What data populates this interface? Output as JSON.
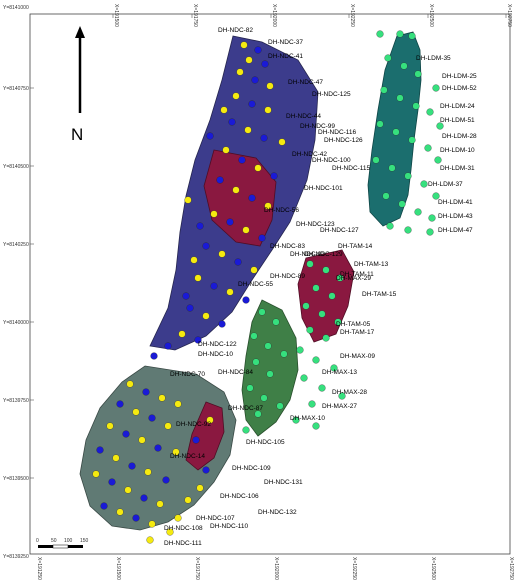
{
  "north": {
    "label": "N"
  },
  "grid": {
    "x_labels": [
      "X=191500",
      "X=191750",
      "X=192000",
      "X=192250",
      "X=192500",
      "X=192750"
    ],
    "x_labels_bottom": [
      "X=191250",
      "X=191500",
      "X=191750",
      "X=192000",
      "X=192250",
      "X=192500",
      "X=192750"
    ],
    "y_labels": [
      "Y=8141000",
      "Y=8140750",
      "Y=8140500",
      "Y=8140250",
      "Y=8140000",
      "Y=8139750",
      "Y=8139500",
      "Y=8139250"
    ]
  },
  "scale_bar": {
    "ticks": [
      "0",
      "50",
      "100",
      "150"
    ]
  },
  "colors": {
    "purple_body": "#3c3c8c",
    "teal_body": "#1b6e6e",
    "grey_body": "#607a74",
    "green_body": "#3f7f47",
    "red_body": "#8a1840",
    "hole_yellow": "#f5ea10",
    "hole_blue": "#1a1ad6",
    "hole_green": "#36e07e"
  },
  "drillholes": [
    {
      "label": "DH-NDC-82"
    },
    {
      "label": "DH-NDC-37"
    },
    {
      "label": "DH-NDC-41"
    },
    {
      "label": "DH-NDC-47"
    },
    {
      "label": "DH-NDC-125"
    },
    {
      "label": "DH-NDC-44"
    },
    {
      "label": "DH-NDC-99"
    },
    {
      "label": "DH-NDC-116"
    },
    {
      "label": "DH-NDC-126"
    },
    {
      "label": "DH-NDC-42"
    },
    {
      "label": "DH-NDC-100"
    },
    {
      "label": "DH-NDC-115"
    },
    {
      "label": "DH-NDC-101"
    },
    {
      "label": "DH-NDC-56"
    },
    {
      "label": "DH-NDC-123"
    },
    {
      "label": "DH-NDC-127"
    },
    {
      "label": "DH-NDC-83"
    },
    {
      "label": "DH-NDC-129"
    },
    {
      "label": "DH-NDC-89"
    },
    {
      "label": "DH-NDC-93"
    },
    {
      "label": "DH-NDC-55"
    },
    {
      "label": "DH-NDC-122"
    },
    {
      "label": "DH-NDC-10"
    },
    {
      "label": "DH-NDC-84"
    },
    {
      "label": "DH-NDC-70"
    },
    {
      "label": "DH-NDC-92"
    },
    {
      "label": "DH-NDC-14"
    },
    {
      "label": "DH-NDC-87"
    },
    {
      "label": "DH-NDC-105"
    },
    {
      "label": "DH-NDC-109"
    },
    {
      "label": "DH-NDC-131"
    },
    {
      "label": "DH-NDC-106"
    },
    {
      "label": "DH-NDC-132"
    },
    {
      "label": "DH-NDC-107"
    },
    {
      "label": "DH-NDC-110"
    },
    {
      "label": "DH-NDC-108"
    },
    {
      "label": "DH-NDC-111"
    },
    {
      "label": "DH-LDM-35"
    },
    {
      "label": "DH-LDM-25"
    },
    {
      "label": "DH-LDM-52"
    },
    {
      "label": "DH-LDM-24"
    },
    {
      "label": "DH-LDM-51"
    },
    {
      "label": "DH-LDM-28"
    },
    {
      "label": "DH-LDM-10"
    },
    {
      "label": "DH-LDM-31"
    },
    {
      "label": "DH-LDM-37"
    },
    {
      "label": "DH-LDM-41"
    },
    {
      "label": "DH-LDM-43"
    },
    {
      "label": "DH-LDM-47"
    },
    {
      "label": "DH-TAM-14"
    },
    {
      "label": "DH-TAM-13"
    },
    {
      "label": "DH-TAM-11"
    },
    {
      "label": "DH-TAM-15"
    },
    {
      "label": "DH-MAX-29"
    },
    {
      "label": "DH-TAM-05"
    },
    {
      "label": "DH-TAM-17"
    },
    {
      "label": "DH-MAX-09"
    },
    {
      "label": "DH-MAX-13"
    },
    {
      "label": "DH-MAX-28"
    },
    {
      "label": "DH-MAX-27"
    },
    {
      "label": "DH-MAX-10"
    }
  ]
}
